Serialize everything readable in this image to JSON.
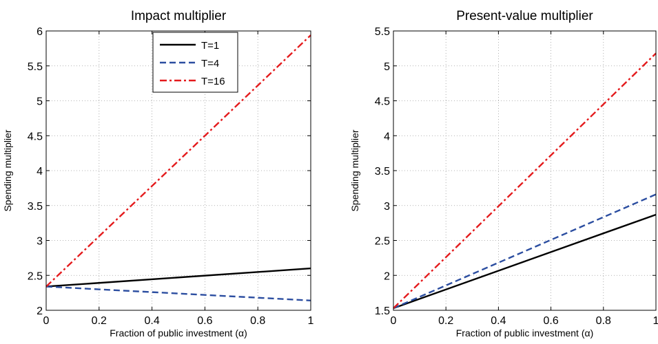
{
  "chart_data": [
    {
      "type": "line",
      "title": "Impact multiplier",
      "xlabel": "Fraction of public investment (α)",
      "ylabel": "Spending multiplier",
      "xlim": [
        0,
        1
      ],
      "ylim": [
        2,
        6
      ],
      "xticks": [
        "0",
        "0.2",
        "0.4",
        "0.6",
        "0.8",
        "1"
      ],
      "yticks": [
        "2",
        "2.5",
        "3",
        "3.5",
        "4",
        "4.5",
        "5",
        "5.5",
        "6"
      ],
      "grid": true,
      "legend_position": "top-center",
      "series": [
        {
          "name": "T=1",
          "style": "solid",
          "color": "#000000",
          "x": [
            0,
            1
          ],
          "y": [
            2.34,
            2.6
          ]
        },
        {
          "name": "T=4",
          "style": "dashed",
          "color": "#2b4da0",
          "x": [
            0,
            1
          ],
          "y": [
            2.34,
            2.14
          ]
        },
        {
          "name": "T=16",
          "style": "dashdot",
          "color": "#e41a1c",
          "x": [
            0,
            1
          ],
          "y": [
            2.34,
            5.94
          ]
        }
      ]
    },
    {
      "type": "line",
      "title": "Present-value multiplier",
      "xlabel": "Fraction of public investment (α)",
      "ylabel": "Spending multiplier",
      "xlim": [
        0,
        1
      ],
      "ylim": [
        1.5,
        5.5
      ],
      "xticks": [
        "0",
        "0.2",
        "0.4",
        "0.6",
        "0.8",
        "1"
      ],
      "yticks": [
        "1.5",
        "2",
        "2.5",
        "3",
        "3.5",
        "4",
        "4.5",
        "5",
        "5.5"
      ],
      "grid": true,
      "series": [
        {
          "name": "T=1",
          "style": "solid",
          "color": "#000000",
          "x": [
            0,
            1
          ],
          "y": [
            1.53,
            2.87
          ]
        },
        {
          "name": "T=4",
          "style": "dashed",
          "color": "#2b4da0",
          "x": [
            0,
            1
          ],
          "y": [
            1.53,
            3.16
          ]
        },
        {
          "name": "T=16",
          "style": "dashdot",
          "color": "#e41a1c",
          "x": [
            0,
            1
          ],
          "y": [
            1.53,
            5.18
          ]
        }
      ]
    }
  ]
}
